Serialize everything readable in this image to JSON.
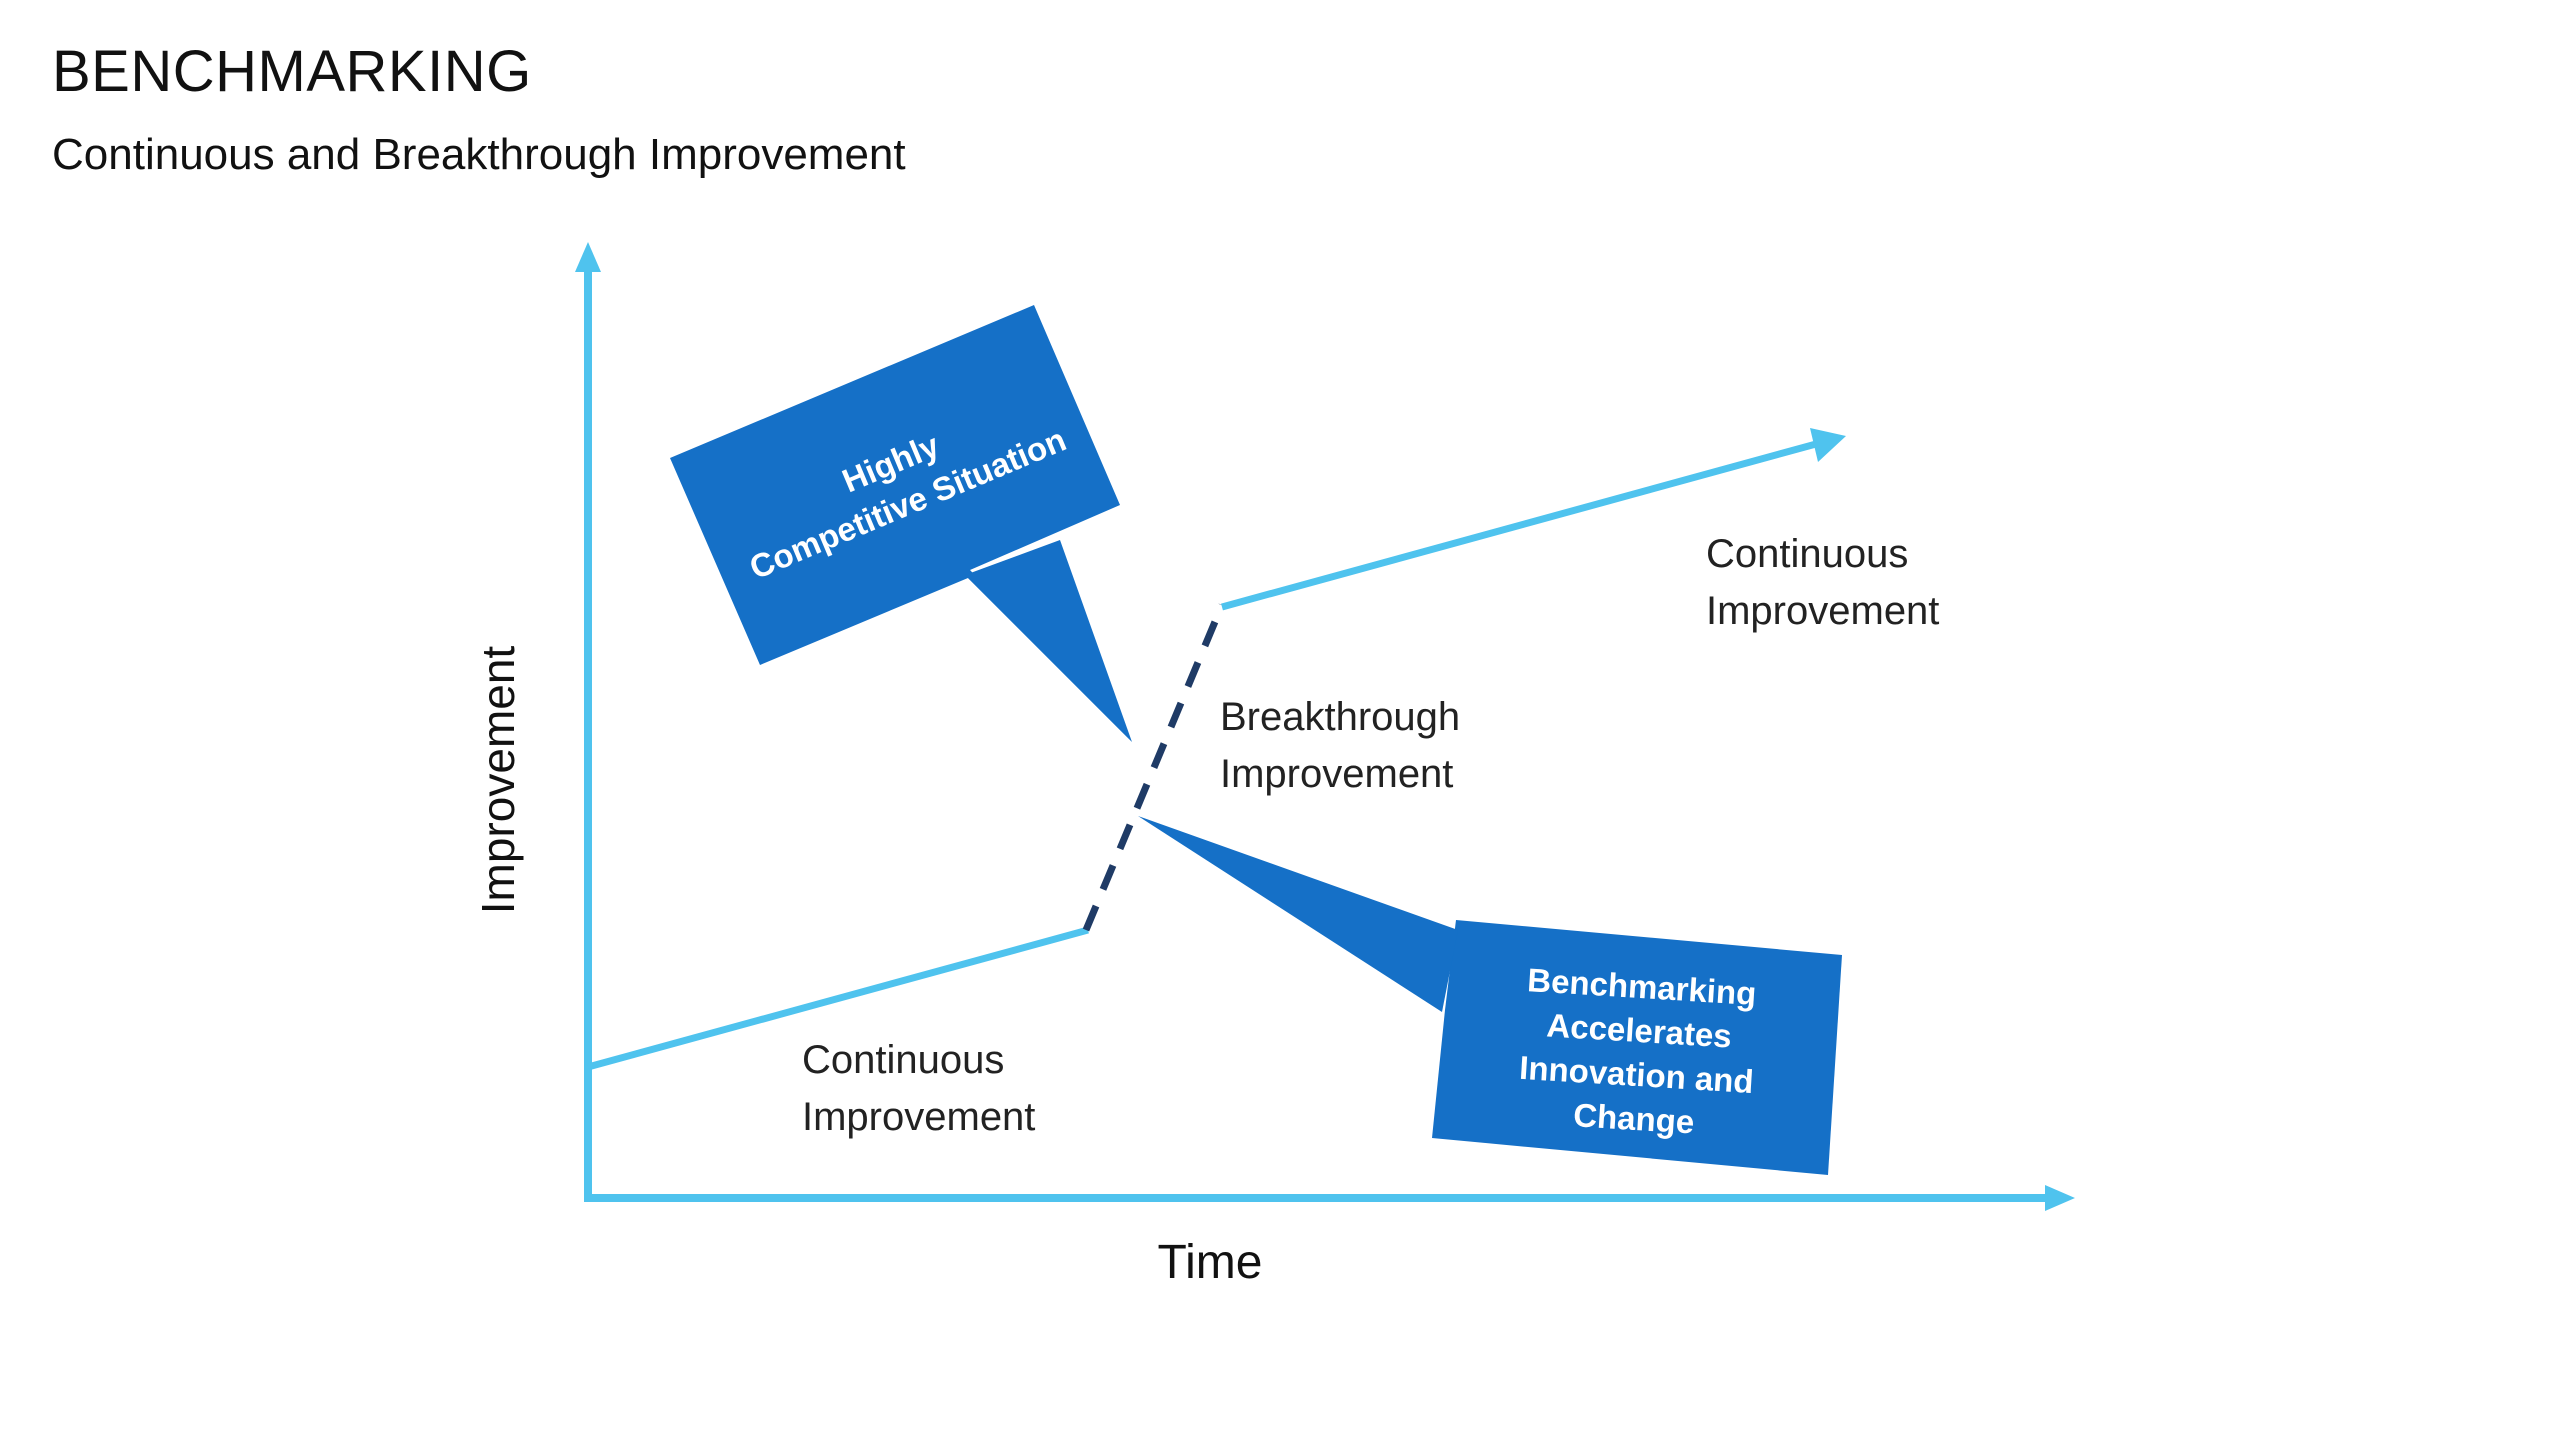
{
  "header": {
    "title": "BENCHMARKING",
    "subtitle": "Continuous and Breakthrough Improvement"
  },
  "axes": {
    "y_label": "Improvement",
    "x_label": "Time"
  },
  "labels": {
    "continuous_lower": [
      "Continuous",
      "Improvement"
    ],
    "breakthrough": [
      "Breakthrough",
      "Improvement"
    ],
    "continuous_upper": [
      "Continuous",
      "Improvement"
    ]
  },
  "callouts": {
    "competitive": [
      "Highly",
      "Competitive Situation"
    ],
    "benchmarking": [
      "Benchmarking",
      "Accelerates",
      "Innovation and",
      "Change"
    ]
  },
  "colors": {
    "axis_line": "#4FC3EE",
    "dashed_segment": "#1F3B66",
    "callout_fill": "#1570C7",
    "callout_text": "#FFFFFF"
  },
  "icons": {
    "axis_arrow": "arrowhead",
    "trend_arrow": "arrowhead"
  }
}
